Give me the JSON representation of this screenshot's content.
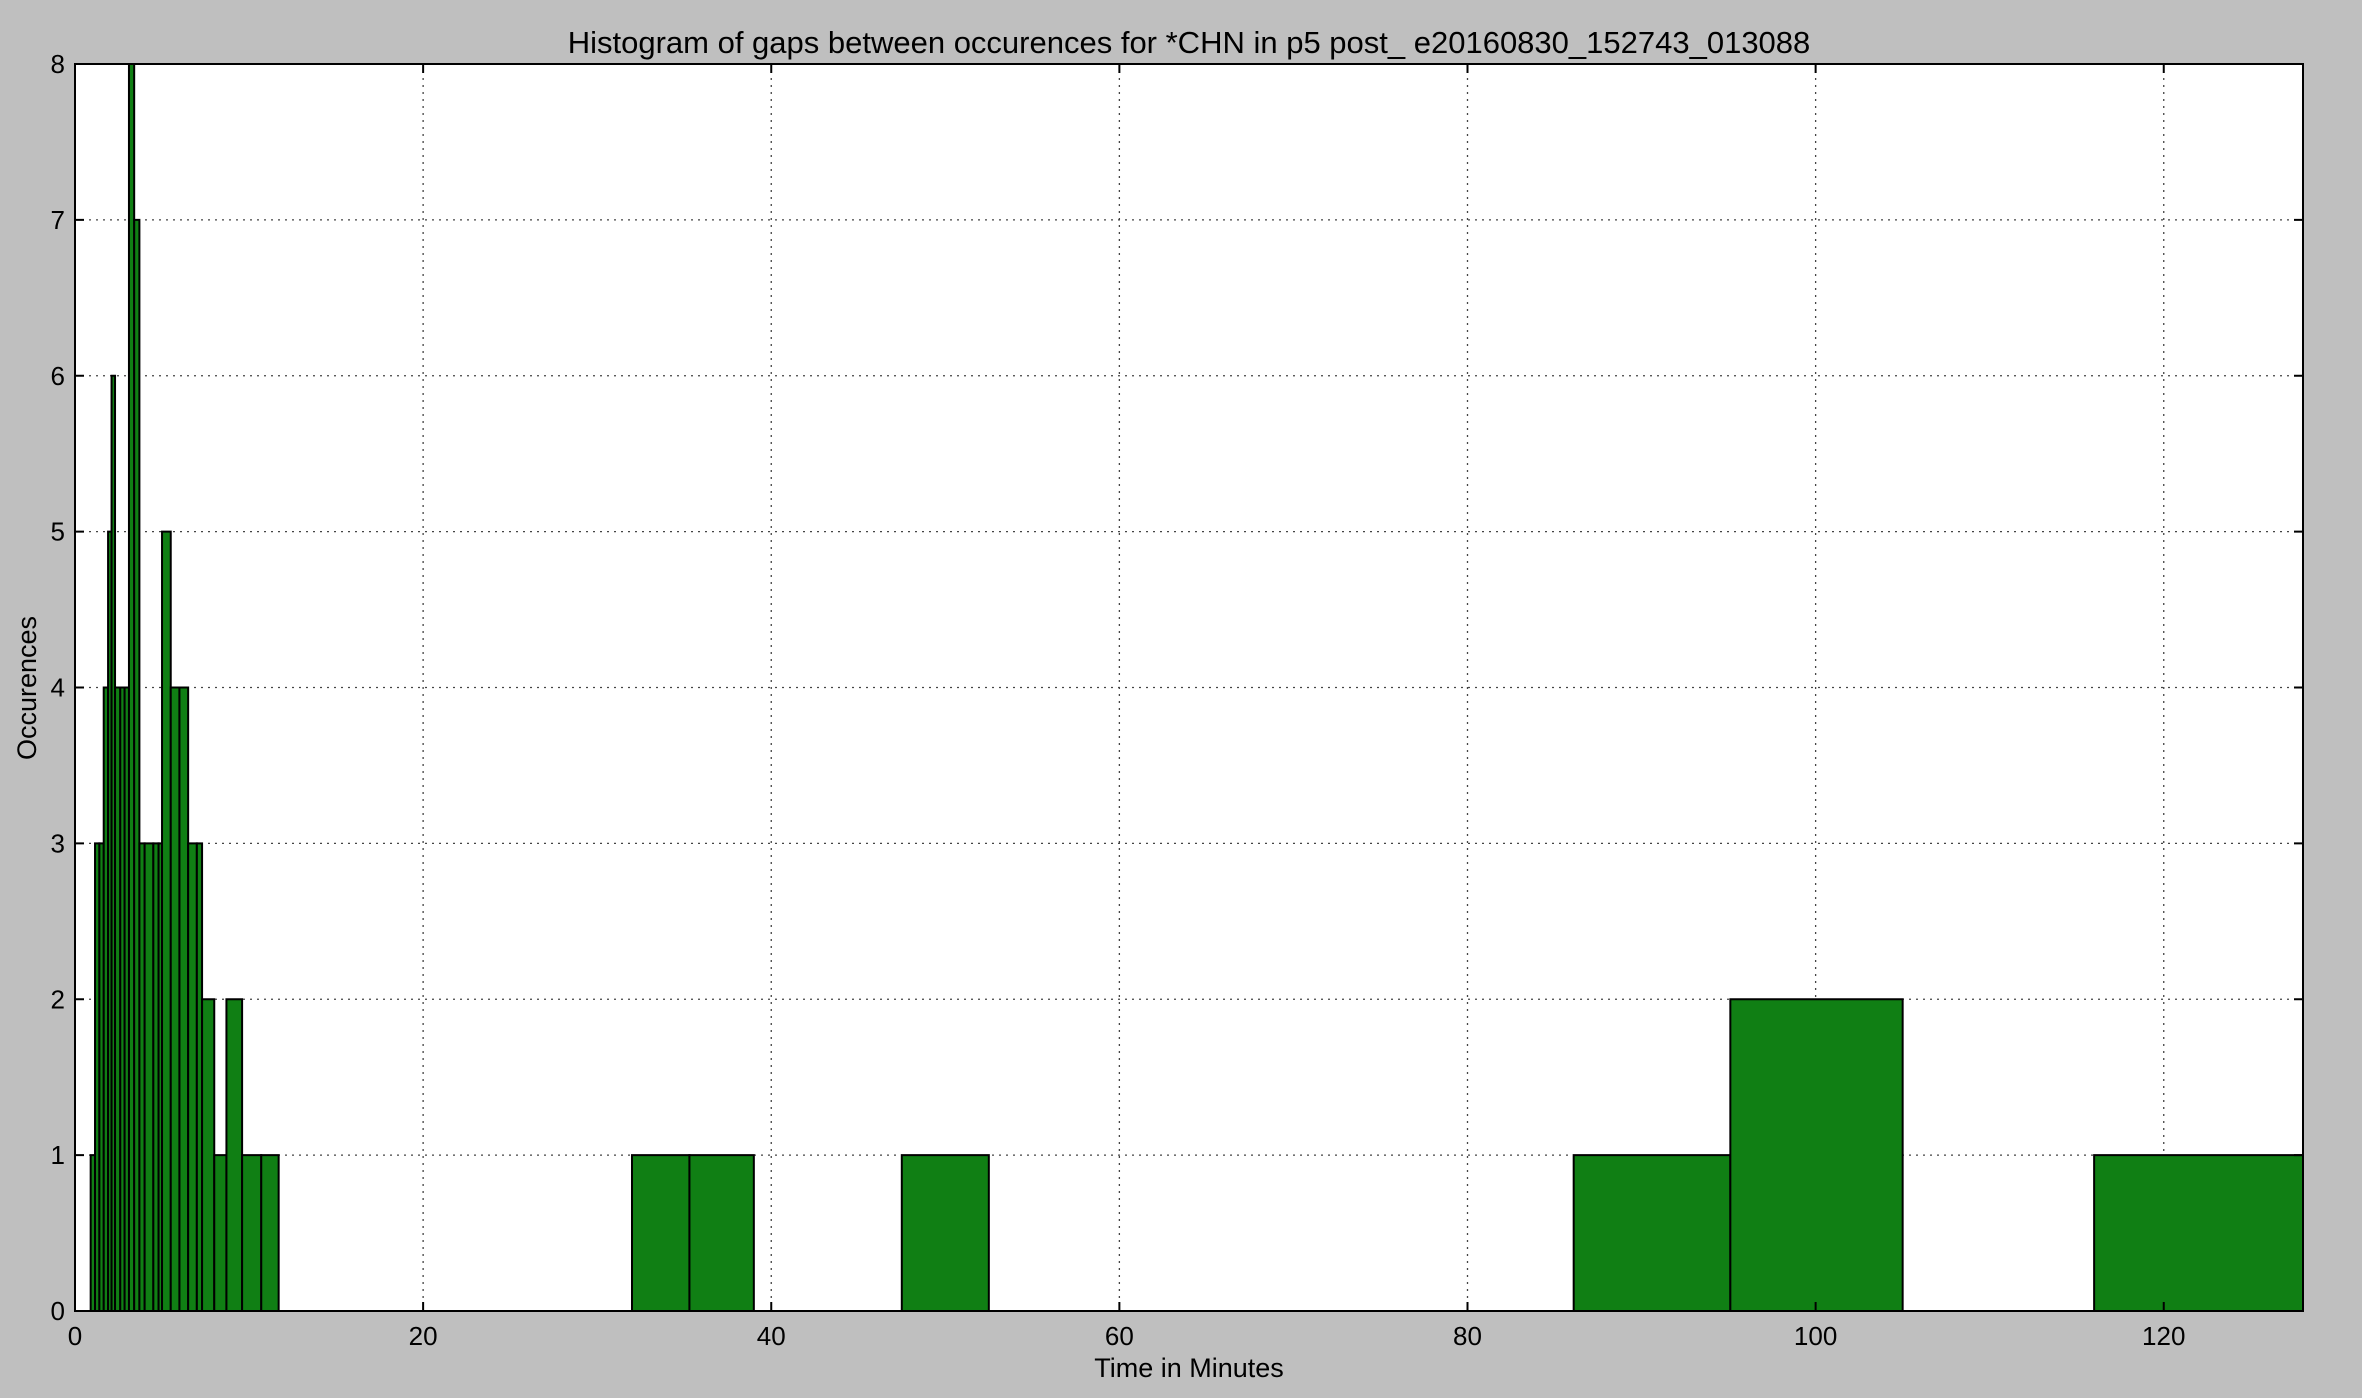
{
  "chart_data": {
    "type": "bar",
    "title": "Histogram of gaps between occurences for *CHN in p5 post_ e20160830_152743_013088",
    "xlabel": "Time in Minutes",
    "ylabel": "Occurences",
    "xlim": [
      0,
      128
    ],
    "ylim": [
      0,
      8
    ],
    "xticks": [
      0,
      20,
      40,
      60,
      80,
      100,
      120
    ],
    "yticks": [
      0,
      1,
      2,
      3,
      4,
      5,
      6,
      7,
      8
    ],
    "grid": true,
    "bar_color": "#107f14",
    "background_color": "#bfbfbf",
    "plot_background_color": "#ffffff",
    "bins": [
      {
        "x0": 0.9,
        "x1": 1.15,
        "count": 1
      },
      {
        "x0": 1.15,
        "x1": 1.4,
        "count": 3
      },
      {
        "x0": 1.4,
        "x1": 1.65,
        "count": 3
      },
      {
        "x0": 1.65,
        "x1": 1.9,
        "count": 4
      },
      {
        "x0": 1.9,
        "x1": 2.1,
        "count": 5
      },
      {
        "x0": 2.1,
        "x1": 2.3,
        "count": 6
      },
      {
        "x0": 2.3,
        "x1": 2.6,
        "count": 4
      },
      {
        "x0": 2.6,
        "x1": 2.85,
        "count": 4
      },
      {
        "x0": 2.85,
        "x1": 3.1,
        "count": 4
      },
      {
        "x0": 3.1,
        "x1": 3.4,
        "count": 8
      },
      {
        "x0": 3.4,
        "x1": 3.7,
        "count": 7
      },
      {
        "x0": 3.7,
        "x1": 4.0,
        "count": 3
      },
      {
        "x0": 4.0,
        "x1": 4.5,
        "count": 3
      },
      {
        "x0": 4.5,
        "x1": 4.8,
        "count": 3
      },
      {
        "x0": 4.8,
        "x1": 5.0,
        "count": 3
      },
      {
        "x0": 5.0,
        "x1": 5.5,
        "count": 5
      },
      {
        "x0": 5.5,
        "x1": 6.0,
        "count": 4
      },
      {
        "x0": 6.0,
        "x1": 6.5,
        "count": 4
      },
      {
        "x0": 6.5,
        "x1": 7.0,
        "count": 3
      },
      {
        "x0": 7.0,
        "x1": 7.3,
        "count": 3
      },
      {
        "x0": 7.3,
        "x1": 8.0,
        "count": 2
      },
      {
        "x0": 8.0,
        "x1": 8.7,
        "count": 1
      },
      {
        "x0": 8.7,
        "x1": 9.6,
        "count": 2
      },
      {
        "x0": 9.6,
        "x1": 10.7,
        "count": 1
      },
      {
        "x0": 10.7,
        "x1": 11.7,
        "count": 1
      },
      {
        "x0": 32.0,
        "x1": 35.3,
        "count": 1
      },
      {
        "x0": 35.3,
        "x1": 39.0,
        "count": 1
      },
      {
        "x0": 47.5,
        "x1": 52.5,
        "count": 1
      },
      {
        "x0": 86.1,
        "x1": 95.1,
        "count": 1
      },
      {
        "x0": 95.1,
        "x1": 105.0,
        "count": 2
      },
      {
        "x0": 116.0,
        "x1": 128.0,
        "count": 1
      }
    ]
  }
}
